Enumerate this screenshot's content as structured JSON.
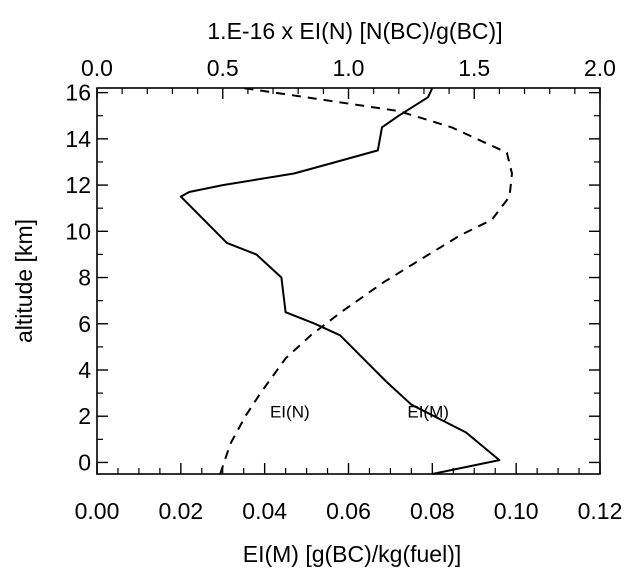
{
  "chart_data": {
    "type": "line",
    "title": "",
    "xlabel_bottom": "EI(M)  [g(BC)/kg(fuel)]",
    "xlabel_top": "1.E-16 x EI(N)  [N(BC)/g(BC)]",
    "ylabel": "altitude [km]",
    "xlim_bottom": [
      0.0,
      0.12
    ],
    "xlim_top": [
      0.0,
      2.0
    ],
    "ylim": [
      -0.5,
      16.2
    ],
    "xticks_bottom": [
      "0.00",
      "0.02",
      "0.04",
      "0.06",
      "0.08",
      "0.10",
      "0.12"
    ],
    "xticks_top": [
      "0.0",
      "0.5",
      "1.0",
      "1.5",
      "2.0"
    ],
    "yticks": [
      "0",
      "2",
      "4",
      "6",
      "8",
      "10",
      "12",
      "14",
      "16"
    ],
    "grid": false,
    "series": [
      {
        "name": "EI(M)",
        "axis": "bottom",
        "style": "solid",
        "points": [
          [
            0.08,
            -0.5
          ],
          [
            0.096,
            0.1
          ],
          [
            0.088,
            1.3
          ],
          [
            0.075,
            2.5
          ],
          [
            0.069,
            3.5
          ],
          [
            0.058,
            5.5
          ],
          [
            0.052,
            6.0
          ],
          [
            0.045,
            6.5
          ],
          [
            0.044,
            8.0
          ],
          [
            0.041,
            8.5
          ],
          [
            0.038,
            9.0
          ],
          [
            0.031,
            9.5
          ],
          [
            0.02,
            11.5
          ],
          [
            0.022,
            11.7
          ],
          [
            0.03,
            12.0
          ],
          [
            0.047,
            12.5
          ],
          [
            0.057,
            13.0
          ],
          [
            0.067,
            13.5
          ],
          [
            0.068,
            14.5
          ],
          [
            0.072,
            15.0
          ],
          [
            0.079,
            15.8
          ],
          [
            0.08,
            16.2
          ]
        ]
      },
      {
        "name": "EI(N)",
        "axis": "top",
        "style": "dashed",
        "points": [
          [
            0.49,
            -0.5
          ],
          [
            0.53,
            0.8
          ],
          [
            0.59,
            2.0
          ],
          [
            0.65,
            3.0
          ],
          [
            0.75,
            4.5
          ],
          [
            0.85,
            5.5
          ],
          [
            0.97,
            6.5
          ],
          [
            1.14,
            7.8
          ],
          [
            1.29,
            8.8
          ],
          [
            1.44,
            9.8
          ],
          [
            1.57,
            10.5
          ],
          [
            1.64,
            11.5
          ],
          [
            1.65,
            12.5
          ],
          [
            1.63,
            13.4
          ],
          [
            1.41,
            14.5
          ],
          [
            1.2,
            15.2
          ],
          [
            0.83,
            15.8
          ],
          [
            0.58,
            16.2
          ]
        ]
      }
    ],
    "annotations": [
      {
        "text": "EI(N)",
        "x": 0.046,
        "y": 2.2
      },
      {
        "text": "EI(M)",
        "x": 0.079,
        "y": 2.2
      }
    ]
  }
}
